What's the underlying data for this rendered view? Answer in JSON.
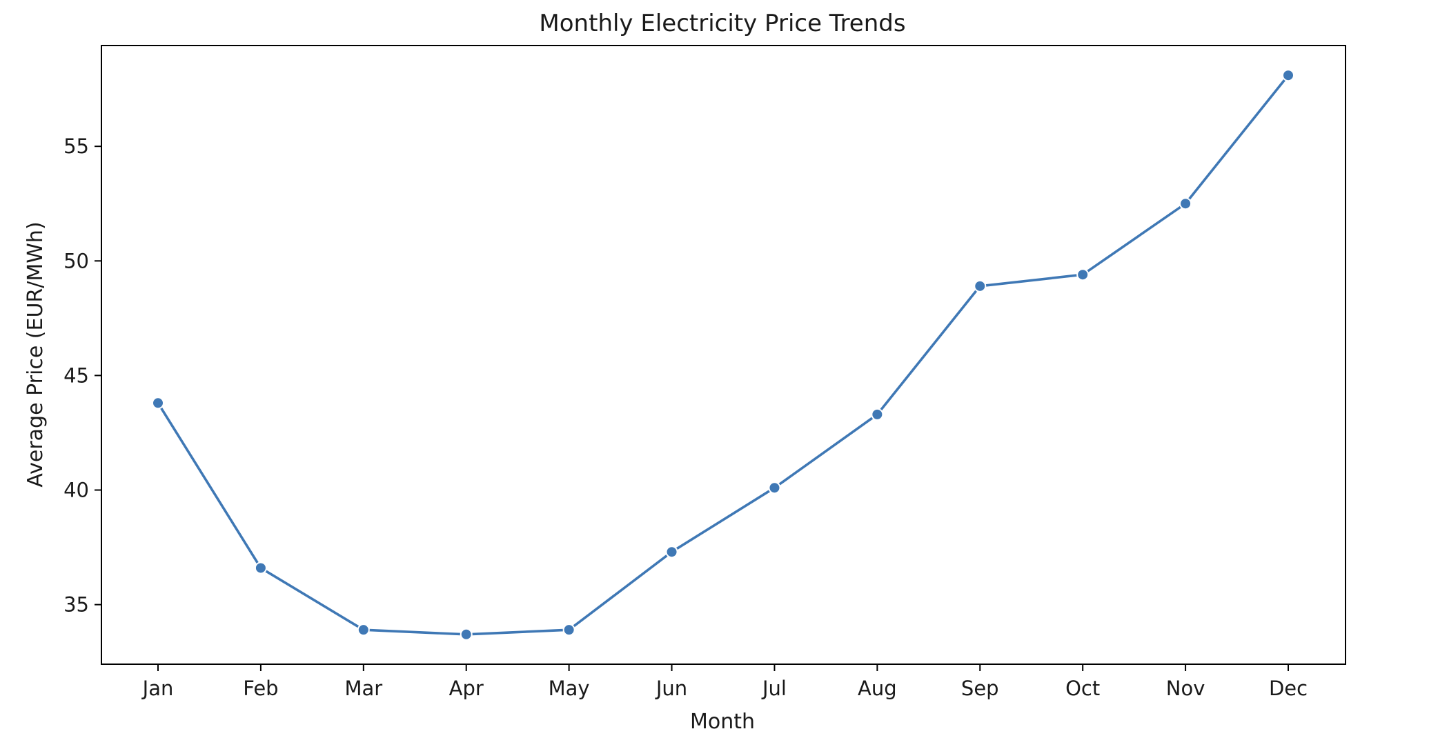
{
  "chart_data": {
    "type": "line",
    "title": "Monthly Electricity Price Trends",
    "xlabel": "Month",
    "ylabel": "Average Price (EUR/MWh)",
    "categories": [
      "Jan",
      "Feb",
      "Mar",
      "Apr",
      "May",
      "Jun",
      "Jul",
      "Aug",
      "Sep",
      "Oct",
      "Nov",
      "Dec"
    ],
    "series": [
      {
        "values": [
          43.8,
          36.6,
          33.9,
          33.7,
          33.9,
          37.3,
          40.1,
          43.3,
          48.9,
          49.4,
          52.5,
          58.1
        ],
        "color": "#3f78b5"
      }
    ],
    "ylim": [
      32.4,
      59.4
    ],
    "yticks": [
      35,
      40,
      45,
      50,
      55
    ],
    "grid": false,
    "legend": "none"
  }
}
